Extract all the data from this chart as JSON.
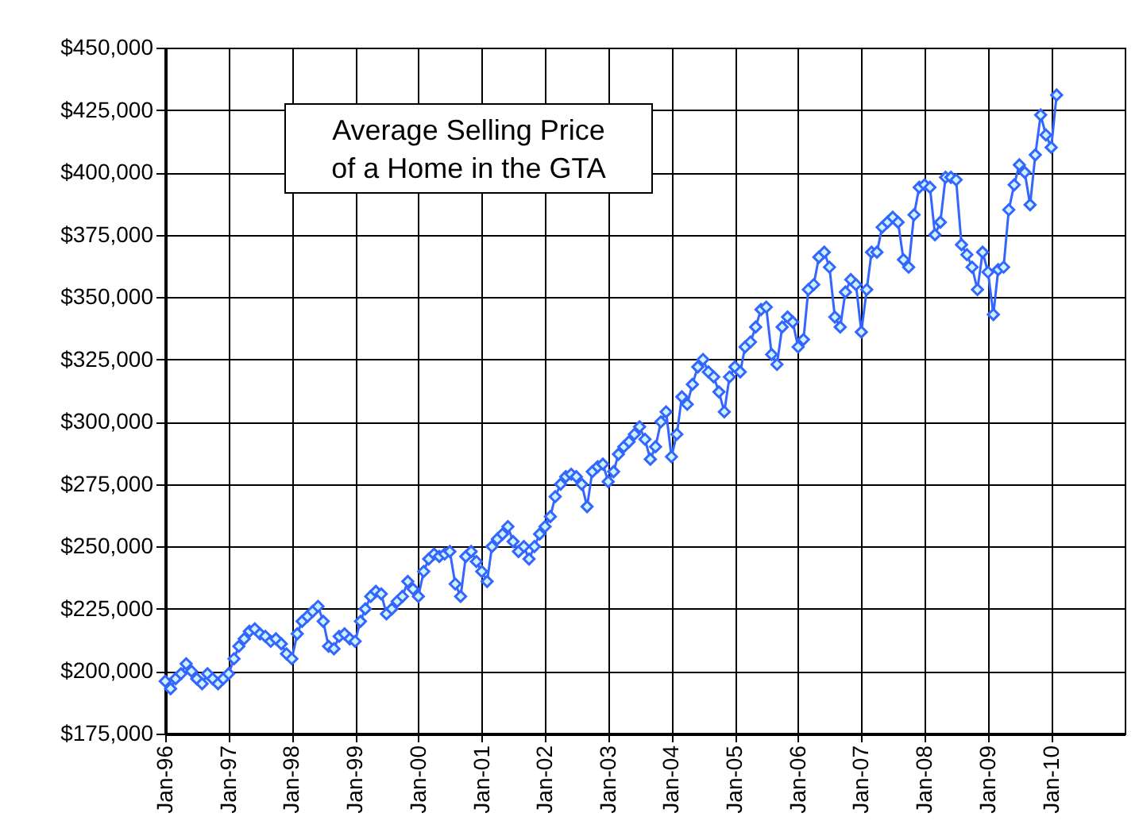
{
  "chart_data": {
    "type": "line",
    "title": "Average Selling Price\nof a Home in the GTA",
    "x": [
      "1996-01",
      "1996-02",
      "1996-03",
      "1996-04",
      "1996-05",
      "1996-06",
      "1996-07",
      "1996-08",
      "1996-09",
      "1996-10",
      "1996-11",
      "1996-12",
      "1997-01",
      "1997-02",
      "1997-03",
      "1997-04",
      "1997-05",
      "1997-06",
      "1997-07",
      "1997-08",
      "1997-09",
      "1997-10",
      "1997-11",
      "1997-12",
      "1998-01",
      "1998-02",
      "1998-03",
      "1998-04",
      "1998-05",
      "1998-06",
      "1998-07",
      "1998-08",
      "1998-09",
      "1998-10",
      "1998-11",
      "1998-12",
      "1999-01",
      "1999-02",
      "1999-03",
      "1999-04",
      "1999-05",
      "1999-06",
      "1999-07",
      "1999-08",
      "1999-09",
      "1999-10",
      "1999-11",
      "1999-12",
      "2000-01",
      "2000-02",
      "2000-03",
      "2000-04",
      "2000-05",
      "2000-06",
      "2000-07",
      "2000-08",
      "2000-09",
      "2000-10",
      "2000-11",
      "2000-12",
      "2001-01",
      "2001-02",
      "2001-03",
      "2001-04",
      "2001-05",
      "2001-06",
      "2001-07",
      "2001-08",
      "2001-09",
      "2001-10",
      "2001-11",
      "2001-12",
      "2002-01",
      "2002-02",
      "2002-03",
      "2002-04",
      "2002-05",
      "2002-06",
      "2002-07",
      "2002-08",
      "2002-09",
      "2002-10",
      "2002-11",
      "2002-12",
      "2003-01",
      "2003-02",
      "2003-03",
      "2003-04",
      "2003-05",
      "2003-06",
      "2003-07",
      "2003-08",
      "2003-09",
      "2003-10",
      "2003-11",
      "2003-12",
      "2004-01",
      "2004-02",
      "2004-03",
      "2004-04",
      "2004-05",
      "2004-06",
      "2004-07",
      "2004-08",
      "2004-09",
      "2004-10",
      "2004-11",
      "2004-12",
      "2005-01",
      "2005-02",
      "2005-03",
      "2005-04",
      "2005-05",
      "2005-06",
      "2005-07",
      "2005-08",
      "2005-09",
      "2005-10",
      "2005-11",
      "2005-12",
      "2006-01",
      "2006-02",
      "2006-03",
      "2006-04",
      "2006-05",
      "2006-06",
      "2006-07",
      "2006-08",
      "2006-09",
      "2006-10",
      "2006-11",
      "2006-12",
      "2007-01",
      "2007-02",
      "2007-03",
      "2007-04",
      "2007-05",
      "2007-06",
      "2007-07",
      "2007-08",
      "2007-09",
      "2007-10",
      "2007-11",
      "2007-12",
      "2008-01",
      "2008-02",
      "2008-03",
      "2008-04",
      "2008-05",
      "2008-06",
      "2008-07",
      "2008-08",
      "2008-09",
      "2008-10",
      "2008-11",
      "2008-12",
      "2009-01",
      "2009-02",
      "2009-03",
      "2009-04",
      "2009-05",
      "2009-06",
      "2009-07",
      "2009-08",
      "2009-09",
      "2009-10",
      "2009-11",
      "2009-12",
      "2010-01",
      "2010-02"
    ],
    "series": [
      {
        "color": "#3366ff",
        "values": [
          196000,
          193000,
          197000,
          199000,
          203000,
          200000,
          197000,
          195000,
          199000,
          197000,
          195000,
          197000,
          199000,
          205000,
          210000,
          213000,
          216000,
          217000,
          215000,
          214000,
          212000,
          213000,
          211000,
          207000,
          205000,
          215000,
          220000,
          222000,
          224000,
          226000,
          220000,
          210000,
          209000,
          214000,
          215000,
          213000,
          212000,
          220000,
          225000,
          230000,
          232000,
          231000,
          223000,
          225000,
          228000,
          230000,
          236000,
          233000,
          230000,
          240000,
          245000,
          247000,
          246000,
          247000,
          248000,
          235000,
          230000,
          246000,
          248000,
          244000,
          240000,
          236000,
          250000,
          253000,
          255000,
          258000,
          252000,
          248000,
          250000,
          245000,
          250000,
          255000,
          258000,
          262000,
          270000,
          275000,
          278000,
          279000,
          278000,
          275000,
          266000,
          280000,
          282000,
          283000,
          276000,
          280000,
          287000,
          290000,
          292000,
          295000,
          298000,
          293000,
          285000,
          290000,
          300000,
          304000,
          286000,
          295000,
          310000,
          307000,
          315000,
          322000,
          325000,
          320000,
          318000,
          312000,
          304000,
          318000,
          322000,
          320000,
          330000,
          332000,
          338000,
          345000,
          346000,
          327000,
          323000,
          338000,
          342000,
          340000,
          330000,
          333000,
          353000,
          355000,
          366000,
          368000,
          362000,
          342000,
          338000,
          352000,
          357000,
          355000,
          336000,
          353000,
          368000,
          368000,
          378000,
          380000,
          382000,
          380000,
          365000,
          362000,
          383000,
          394000,
          395000,
          394000,
          375000,
          380000,
          398000,
          398000,
          397000,
          371000,
          367000,
          362000,
          353000,
          368000,
          360000,
          343000,
          361000,
          362000,
          385000,
          395000,
          403000,
          400000,
          387000,
          407000,
          423000,
          415000,
          410000,
          431000
        ]
      }
    ],
    "xlim": [
      "1996-01",
      "2011-03"
    ],
    "xticks": [
      {
        "value": "1996-01",
        "label": "Jan-96"
      },
      {
        "value": "1997-01",
        "label": "Jan-97"
      },
      {
        "value": "1998-01",
        "label": "Jan-98"
      },
      {
        "value": "1999-01",
        "label": "Jan-99"
      },
      {
        "value": "2000-01",
        "label": "Jan-00"
      },
      {
        "value": "2001-01",
        "label": "Jan-01"
      },
      {
        "value": "2002-01",
        "label": "Jan-02"
      },
      {
        "value": "2003-01",
        "label": "Jan-03"
      },
      {
        "value": "2004-01",
        "label": "Jan-04"
      },
      {
        "value": "2005-01",
        "label": "Jan-05"
      },
      {
        "value": "2006-01",
        "label": "Jan-06"
      },
      {
        "value": "2007-01",
        "label": "Jan-07"
      },
      {
        "value": "2008-01",
        "label": "Jan-08"
      },
      {
        "value": "2009-01",
        "label": "Jan-09"
      },
      {
        "value": "2010-01",
        "label": "Jan-10"
      }
    ],
    "ylim": [
      175000,
      450000
    ],
    "yticks": [
      {
        "value": 175000,
        "label": "$175,000"
      },
      {
        "value": 200000,
        "label": "$200,000"
      },
      {
        "value": 225000,
        "label": "$225,000"
      },
      {
        "value": 250000,
        "label": "$250,000"
      },
      {
        "value": 275000,
        "label": "$275,000"
      },
      {
        "value": 300000,
        "label": "$300,000"
      },
      {
        "value": 325000,
        "label": "$325,000"
      },
      {
        "value": 350000,
        "label": "$350,000"
      },
      {
        "value": 375000,
        "label": "$375,000"
      },
      {
        "value": 400000,
        "label": "$400,000"
      },
      {
        "value": 425000,
        "label": "$425,000"
      },
      {
        "value": 450000,
        "label": "$450,000"
      }
    ],
    "grid": true,
    "marker": "diamond",
    "line_style": "solid"
  }
}
